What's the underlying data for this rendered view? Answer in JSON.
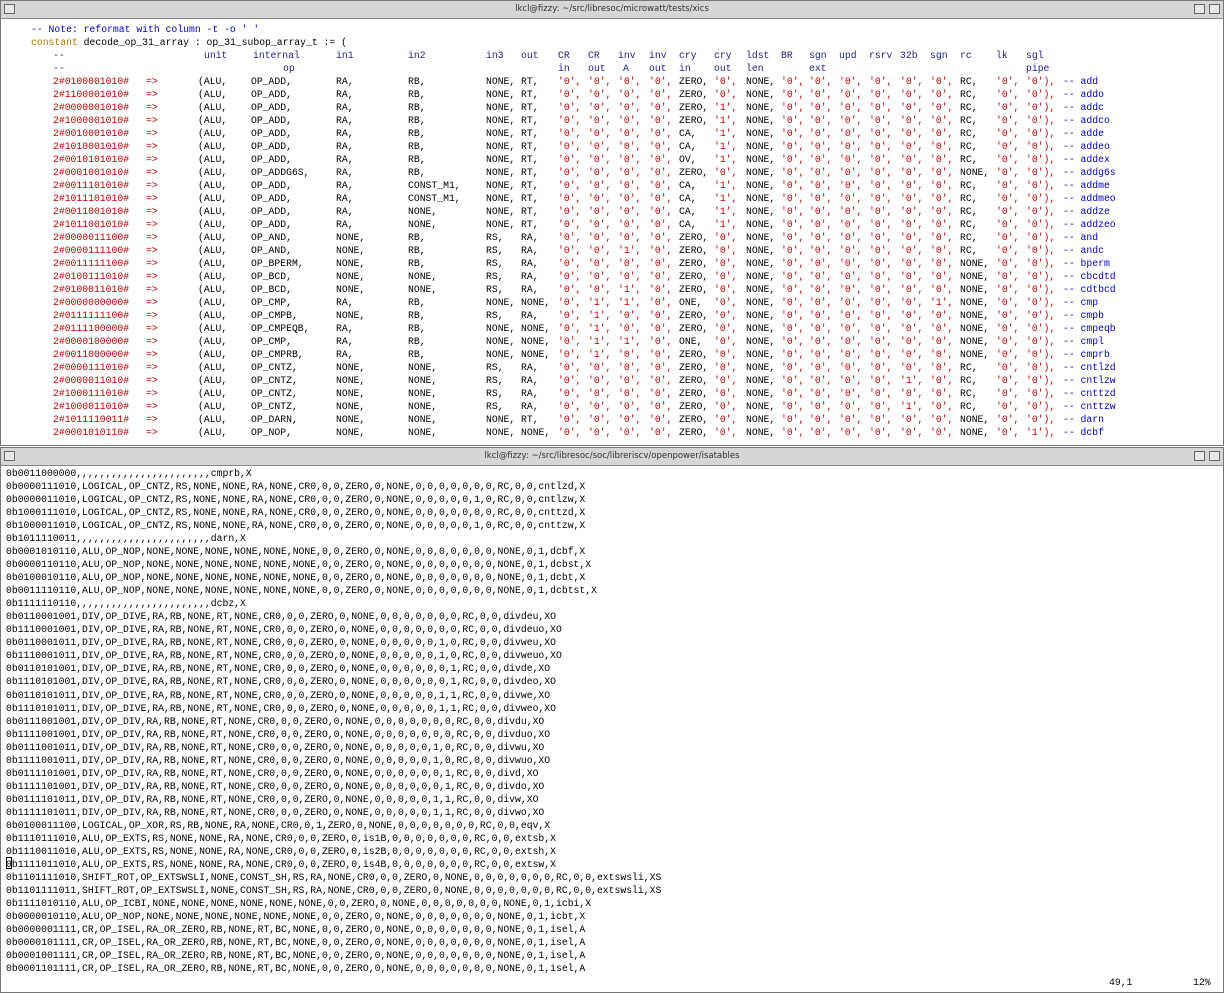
{
  "top_window": {
    "title": "lkcl@fizzy: ~/src/libresoc/microwatt/tests/xics",
    "note": "-- Note: reformat with column -t -o ' '",
    "declaration_keyword": "constant",
    "declaration": "decode_op_31_array : op_31_subop_array_t := (",
    "header_row_1": [
      "--",
      "unit",
      "internal",
      "in1",
      "in2",
      "in3",
      "out",
      "CR",
      "CR",
      "inv",
      "inv",
      "cry",
      "cry",
      "ldst",
      "BR",
      "sgn",
      "upd",
      "rsrv",
      "32b",
      "sgn",
      "rc",
      "lk",
      "sgl"
    ],
    "header_row_2": [
      "--",
      "op",
      "in",
      "out",
      "A",
      "out",
      "in",
      "out",
      "len",
      "ext",
      "pipe"
    ],
    "rows": [
      [
        "2#0100001010#",
        "=>",
        "(ALU,",
        "OP_ADD,",
        "RA,",
        "RB,",
        "NONE,",
        "RT,",
        "'0',",
        "'0',",
        "'0',",
        "'0',",
        "ZERO,",
        "'0',",
        "NONE,",
        "'0',",
        "'0',",
        "'0',",
        "'0',",
        "'0',",
        "'0',",
        "RC,",
        "'0',",
        "'0'),",
        "-- add"
      ],
      [
        "2#1100001010#",
        "=>",
        "(ALU,",
        "OP_ADD,",
        "RA,",
        "RB,",
        "NONE,",
        "RT,",
        "'0',",
        "'0',",
        "'0',",
        "'0',",
        "ZERO,",
        "'0',",
        "NONE,",
        "'0',",
        "'0',",
        "'0',",
        "'0',",
        "'0',",
        "'0',",
        "RC,",
        "'0',",
        "'0'),",
        "-- addo"
      ],
      [
        "2#0000001010#",
        "=>",
        "(ALU,",
        "OP_ADD,",
        "RA,",
        "RB,",
        "NONE,",
        "RT,",
        "'0',",
        "'0',",
        "'0',",
        "'0',",
        "ZERO,",
        "'1',",
        "NONE,",
        "'0',",
        "'0',",
        "'0',",
        "'0',",
        "'0',",
        "'0',",
        "RC,",
        "'0',",
        "'0'),",
        "-- addc"
      ],
      [
        "2#1000001010#",
        "=>",
        "(ALU,",
        "OP_ADD,",
        "RA,",
        "RB,",
        "NONE,",
        "RT,",
        "'0',",
        "'0',",
        "'0',",
        "'0',",
        "ZERO,",
        "'1',",
        "NONE,",
        "'0',",
        "'0',",
        "'0',",
        "'0',",
        "'0',",
        "'0',",
        "RC,",
        "'0',",
        "'0'),",
        "-- addco"
      ],
      [
        "2#0010001010#",
        "=>",
        "(ALU,",
        "OP_ADD,",
        "RA,",
        "RB,",
        "NONE,",
        "RT,",
        "'0',",
        "'0',",
        "'0',",
        "'0',",
        "CA,",
        "'1',",
        "NONE,",
        "'0',",
        "'0',",
        "'0',",
        "'0',",
        "'0',",
        "'0',",
        "RC,",
        "'0',",
        "'0'),",
        "-- adde"
      ],
      [
        "2#1010001010#",
        "=>",
        "(ALU,",
        "OP_ADD,",
        "RA,",
        "RB,",
        "NONE,",
        "RT,",
        "'0',",
        "'0',",
        "'0',",
        "'0',",
        "CA,",
        "'1',",
        "NONE,",
        "'0',",
        "'0',",
        "'0',",
        "'0',",
        "'0',",
        "'0',",
        "RC,",
        "'0',",
        "'0'),",
        "-- addeo"
      ],
      [
        "2#0010101010#",
        "=>",
        "(ALU,",
        "OP_ADD,",
        "RA,",
        "RB,",
        "NONE,",
        "RT,",
        "'0',",
        "'0',",
        "'0',",
        "'0',",
        "OV,",
        "'1',",
        "NONE,",
        "'0',",
        "'0',",
        "'0',",
        "'0',",
        "'0',",
        "'0',",
        "RC,",
        "'0',",
        "'0'),",
        "-- addex"
      ],
      [
        "2#0001001010#",
        "=>",
        "(ALU,",
        "OP_ADDG6S,",
        "RA,",
        "RB,",
        "NONE,",
        "RT,",
        "'0',",
        "'0',",
        "'0',",
        "'0',",
        "ZERO,",
        "'0',",
        "NONE,",
        "'0',",
        "'0',",
        "'0',",
        "'0',",
        "'0',",
        "'0',",
        "NONE,",
        "'0',",
        "'0'),",
        "-- addg6s"
      ],
      [
        "2#0011101010#",
        "=>",
        "(ALU,",
        "OP_ADD,",
        "RA,",
        "CONST_M1,",
        "NONE,",
        "RT,",
        "'0',",
        "'0',",
        "'0',",
        "'0',",
        "CA,",
        "'1',",
        "NONE,",
        "'0',",
        "'0',",
        "'0',",
        "'0',",
        "'0',",
        "'0',",
        "RC,",
        "'0',",
        "'0'),",
        "-- addme"
      ],
      [
        "2#1011101010#",
        "=>",
        "(ALU,",
        "OP_ADD,",
        "RA,",
        "CONST_M1,",
        "NONE,",
        "RT,",
        "'0',",
        "'0',",
        "'0',",
        "'0',",
        "CA,",
        "'1',",
        "NONE,",
        "'0',",
        "'0',",
        "'0',",
        "'0',",
        "'0',",
        "'0',",
        "RC,",
        "'0',",
        "'0'),",
        "-- addmeo"
      ],
      [
        "2#0011001010#",
        "=>",
        "(ALU,",
        "OP_ADD,",
        "RA,",
        "NONE,",
        "NONE,",
        "RT,",
        "'0',",
        "'0',",
        "'0',",
        "'0',",
        "CA,",
        "'1',",
        "NONE,",
        "'0',",
        "'0',",
        "'0',",
        "'0',",
        "'0',",
        "'0',",
        "RC,",
        "'0',",
        "'0'),",
        "-- addze"
      ],
      [
        "2#1011001010#",
        "=>",
        "(ALU,",
        "OP_ADD,",
        "RA,",
        "NONE,",
        "NONE,",
        "RT,",
        "'0',",
        "'0',",
        "'0',",
        "'0',",
        "CA,",
        "'1',",
        "NONE,",
        "'0',",
        "'0',",
        "'0',",
        "'0',",
        "'0',",
        "'0',",
        "RC,",
        "'0',",
        "'0'),",
        "-- addzeo"
      ],
      [
        "2#0000011100#",
        "=>",
        "(ALU,",
        "OP_AND,",
        "NONE,",
        "RB,",
        "RS,",
        "RA,",
        "'0',",
        "'0',",
        "'0',",
        "'0',",
        "ZERO,",
        "'0',",
        "NONE,",
        "'0',",
        "'0',",
        "'0',",
        "'0',",
        "'0',",
        "'0',",
        "RC,",
        "'0',",
        "'0'),",
        "-- and"
      ],
      [
        "2#0000111100#",
        "=>",
        "(ALU,",
        "OP_AND,",
        "NONE,",
        "RB,",
        "RS,",
        "RA,",
        "'0',",
        "'0',",
        "'1',",
        "'0',",
        "ZERO,",
        "'0',",
        "NONE,",
        "'0',",
        "'0',",
        "'0',",
        "'0',",
        "'0',",
        "'0',",
        "RC,",
        "'0',",
        "'0'),",
        "-- andc"
      ],
      [
        "2#0011111100#",
        "=>",
        "(ALU,",
        "OP_BPERM,",
        "NONE,",
        "RB,",
        "RS,",
        "RA,",
        "'0',",
        "'0',",
        "'0',",
        "'0',",
        "ZERO,",
        "'0',",
        "NONE,",
        "'0',",
        "'0',",
        "'0',",
        "'0',",
        "'0',",
        "'0',",
        "NONE,",
        "'0',",
        "'0'),",
        "-- bperm"
      ],
      [
        "2#0100111010#",
        "=>",
        "(ALU,",
        "OP_BCD,",
        "NONE,",
        "NONE,",
        "RS,",
        "RA,",
        "'0',",
        "'0',",
        "'0',",
        "'0',",
        "ZERO,",
        "'0',",
        "NONE,",
        "'0',",
        "'0',",
        "'0',",
        "'0',",
        "'0',",
        "'0',",
        "NONE,",
        "'0',",
        "'0'),",
        "-- cbcdtd"
      ],
      [
        "2#0100011010#",
        "=>",
        "(ALU,",
        "OP_BCD,",
        "NONE,",
        "NONE,",
        "RS,",
        "RA,",
        "'0',",
        "'0',",
        "'1',",
        "'0',",
        "ZERO,",
        "'0',",
        "NONE,",
        "'0',",
        "'0',",
        "'0',",
        "'0',",
        "'0',",
        "'0',",
        "NONE,",
        "'0',",
        "'0'),",
        "-- cdtbcd"
      ],
      [
        "2#0000000000#",
        "=>",
        "(ALU,",
        "OP_CMP,",
        "RA,",
        "RB,",
        "NONE,",
        "NONE,",
        "'0',",
        "'1',",
        "'1',",
        "'0',",
        "ONE,",
        "'0',",
        "NONE,",
        "'0',",
        "'0',",
        "'0',",
        "'0',",
        "'0',",
        "'1',",
        "NONE,",
        "'0',",
        "'0'),",
        "-- cmp"
      ],
      [
        "2#0111111100#",
        "=>",
        "(ALU,",
        "OP_CMPB,",
        "NONE,",
        "RB,",
        "RS,",
        "RA,",
        "'0',",
        "'1',",
        "'0',",
        "'0',",
        "ZERO,",
        "'0',",
        "NONE,",
        "'0',",
        "'0',",
        "'0',",
        "'0',",
        "'0',",
        "'0',",
        "NONE,",
        "'0',",
        "'0'),",
        "-- cmpb"
      ],
      [
        "2#0111100000#",
        "=>",
        "(ALU,",
        "OP_CMPEQB,",
        "RA,",
        "RB,",
        "NONE,",
        "NONE,",
        "'0',",
        "'1',",
        "'0',",
        "'0',",
        "ZERO,",
        "'0',",
        "NONE,",
        "'0',",
        "'0',",
        "'0',",
        "'0',",
        "'0',",
        "'0',",
        "NONE,",
        "'0',",
        "'0'),",
        "-- cmpeqb"
      ],
      [
        "2#0000100000#",
        "=>",
        "(ALU,",
        "OP_CMP,",
        "RA,",
        "RB,",
        "NONE,",
        "NONE,",
        "'0',",
        "'1',",
        "'1',",
        "'0',",
        "ONE,",
        "'0',",
        "NONE,",
        "'0',",
        "'0',",
        "'0',",
        "'0',",
        "'0',",
        "'0',",
        "NONE,",
        "'0',",
        "'0'),",
        "-- cmpl"
      ],
      [
        "2#0011000000#",
        "=>",
        "(ALU,",
        "OP_CMPRB,",
        "RA,",
        "RB,",
        "NONE,",
        "NONE,",
        "'0',",
        "'1',",
        "'0',",
        "'0',",
        "ZERO,",
        "'0',",
        "NONE,",
        "'0',",
        "'0',",
        "'0',",
        "'0',",
        "'0',",
        "'0',",
        "NONE,",
        "'0',",
        "'0'),",
        "-- cmprb"
      ],
      [
        "2#0000111010#",
        "=>",
        "(ALU,",
        "OP_CNTZ,",
        "NONE,",
        "NONE,",
        "RS,",
        "RA,",
        "'0',",
        "'0',",
        "'0',",
        "'0',",
        "ZERO,",
        "'0',",
        "NONE,",
        "'0',",
        "'0',",
        "'0',",
        "'0',",
        "'0',",
        "'0',",
        "RC,",
        "'0',",
        "'0'),",
        "-- cntlzd"
      ],
      [
        "2#0000011010#",
        "=>",
        "(ALU,",
        "OP_CNTZ,",
        "NONE,",
        "NONE,",
        "RS,",
        "RA,",
        "'0',",
        "'0',",
        "'0',",
        "'0',",
        "ZERO,",
        "'0',",
        "NONE,",
        "'0',",
        "'0',",
        "'0',",
        "'0',",
        "'1',",
        "'0',",
        "RC,",
        "'0',",
        "'0'),",
        "-- cntlzw"
      ],
      [
        "2#1000111010#",
        "=>",
        "(ALU,",
        "OP_CNTZ,",
        "NONE,",
        "NONE,",
        "RS,",
        "RA,",
        "'0',",
        "'0',",
        "'0',",
        "'0',",
        "ZERO,",
        "'0',",
        "NONE,",
        "'0',",
        "'0',",
        "'0',",
        "'0',",
        "'0',",
        "'0',",
        "RC,",
        "'0',",
        "'0'),",
        "-- cnttzd"
      ],
      [
        "2#1000011010#",
        "=>",
        "(ALU,",
        "OP_CNTZ,",
        "NONE,",
        "NONE,",
        "RS,",
        "RA,",
        "'0',",
        "'0',",
        "'0',",
        "'0',",
        "ZERO,",
        "'0',",
        "NONE,",
        "'0',",
        "'0',",
        "'0',",
        "'0',",
        "'1',",
        "'0',",
        "RC,",
        "'0',",
        "'0'),",
        "-- cnttzw"
      ],
      [
        "2#1011110011#",
        "=>",
        "(ALU,",
        "OP_DARN,",
        "NONE,",
        "NONE,",
        "NONE,",
        "RT,",
        "'0',",
        "'0',",
        "'0',",
        "'0',",
        "ZERO,",
        "'0',",
        "NONE,",
        "'0',",
        "'0',",
        "'0',",
        "'0',",
        "'0',",
        "'0',",
        "NONE,",
        "'0',",
        "'0'),",
        "-- darn"
      ],
      [
        "2#0001010110#",
        "=>",
        "(ALU,",
        "OP_NOP,",
        "NONE,",
        "NONE,",
        "NONE,",
        "NONE,",
        "'0',",
        "'0',",
        "'0',",
        "'0',",
        "ZERO,",
        "'0',",
        "NONE,",
        "'0',",
        "'0',",
        "'0',",
        "'0',",
        "'0',",
        "'0',",
        "NONE,",
        "'0',",
        "'1'),",
        "-- dcbf"
      ]
    ]
  },
  "bottom_window": {
    "title": "lkcl@fizzy: ~/src/libresoc/soc/libreriscv/openpower/isatables",
    "lines": [
      "0b0011000000,,,,,,,,,,,,,,,,,,,,,,,cmprb,X",
      "0b0000111010,LOGICAL,OP_CNTZ,RS,NONE,NONE,RA,NONE,CR0,0,0,ZERO,0,NONE,0,0,0,0,0,0,0,RC,0,0,cntlzd,X",
      "0b0000011010,LOGICAL,OP_CNTZ,RS,NONE,NONE,RA,NONE,CR0,0,0,ZERO,0,NONE,0,0,0,0,0,1,0,RC,0,0,cntlzw,X",
      "0b1000111010,LOGICAL,OP_CNTZ,RS,NONE,NONE,RA,NONE,CR0,0,0,ZERO,0,NONE,0,0,0,0,0,0,0,RC,0,0,cnttzd,X",
      "0b1000011010,LOGICAL,OP_CNTZ,RS,NONE,NONE,RA,NONE,CR0,0,0,ZERO,0,NONE,0,0,0,0,0,1,0,RC,0,0,cnttzw,X",
      "0b1011110011,,,,,,,,,,,,,,,,,,,,,,,darn,X",
      "0b0001010110,ALU,OP_NOP,NONE,NONE,NONE,NONE,NONE,NONE,0,0,ZERO,0,NONE,0,0,0,0,0,0,0,NONE,0,1,dcbf,X",
      "0b0000110110,ALU,OP_NOP,NONE,NONE,NONE,NONE,NONE,NONE,0,0,ZERO,0,NONE,0,0,0,0,0,0,0,NONE,0,1,dcbst,X",
      "0b0100010110,ALU,OP_NOP,NONE,NONE,NONE,NONE,NONE,NONE,0,0,ZERO,0,NONE,0,0,0,0,0,0,0,NONE,0,1,dcbt,X",
      "0b0011110110,ALU,OP_NOP,NONE,NONE,NONE,NONE,NONE,NONE,0,0,ZERO,0,NONE,0,0,0,0,0,0,0,NONE,0,1,dcbtst,X",
      "0b1111110110,,,,,,,,,,,,,,,,,,,,,,,dcbz,X",
      "0b0110001001,DIV,OP_DIVE,RA,RB,NONE,RT,NONE,CR0,0,0,ZERO,0,NONE,0,0,0,0,0,0,0,RC,0,0,divdeu,XO",
      "0b1110001001,DIV,OP_DIVE,RA,RB,NONE,RT,NONE,CR0,0,0,ZERO,0,NONE,0,0,0,0,0,0,0,RC,0,0,divdeuo,XO",
      "0b0110001011,DIV,OP_DIVE,RA,RB,NONE,RT,NONE,CR0,0,0,ZERO,0,NONE,0,0,0,0,0,1,0,RC,0,0,divweu,XO",
      "0b1110001011,DIV,OP_DIVE,RA,RB,NONE,RT,NONE,CR0,0,0,ZERO,0,NONE,0,0,0,0,0,1,0,RC,0,0,divweuo,XO",
      "0b0110101001,DIV,OP_DIVE,RA,RB,NONE,RT,NONE,CR0,0,0,ZERO,0,NONE,0,0,0,0,0,0,1,RC,0,0,divde,XO",
      "0b1110101001,DIV,OP_DIVE,RA,RB,NONE,RT,NONE,CR0,0,0,ZERO,0,NONE,0,0,0,0,0,0,1,RC,0,0,divdeo,XO",
      "0b0110101011,DIV,OP_DIVE,RA,RB,NONE,RT,NONE,CR0,0,0,ZERO,0,NONE,0,0,0,0,0,1,1,RC,0,0,divwe,XO",
      "0b1110101011,DIV,OP_DIVE,RA,RB,NONE,RT,NONE,CR0,0,0,ZERO,0,NONE,0,0,0,0,0,1,1,RC,0,0,divweo,XO",
      "0b0111001001,DIV,OP_DIV,RA,RB,NONE,RT,NONE,CR0,0,0,ZERO,0,NONE,0,0,0,0,0,0,0,RC,0,0,divdu,XO",
      "0b1111001001,DIV,OP_DIV,RA,RB,NONE,RT,NONE,CR0,0,0,ZERO,0,NONE,0,0,0,0,0,0,0,RC,0,0,divduo,XO",
      "0b0111001011,DIV,OP_DIV,RA,RB,NONE,RT,NONE,CR0,0,0,ZERO,0,NONE,0,0,0,0,0,1,0,RC,0,0,divwu,XO",
      "0b1111001011,DIV,OP_DIV,RA,RB,NONE,RT,NONE,CR0,0,0,ZERO,0,NONE,0,0,0,0,0,1,0,RC,0,0,divwuo,XO",
      "0b0111101001,DIV,OP_DIV,RA,RB,NONE,RT,NONE,CR0,0,0,ZERO,0,NONE,0,0,0,0,0,0,1,RC,0,0,divd,XO",
      "0b1111101001,DIV,OP_DIV,RA,RB,NONE,RT,NONE,CR0,0,0,ZERO,0,NONE,0,0,0,0,0,0,1,RC,0,0,divdo,XO",
      "0b0111101011,DIV,OP_DIV,RA,RB,NONE,RT,NONE,CR0,0,0,ZERO,0,NONE,0,0,0,0,0,1,1,RC,0,0,divw,XO",
      "0b1111101011,DIV,OP_DIV,RA,RB,NONE,RT,NONE,CR0,0,0,ZERO,0,NONE,0,0,0,0,0,1,1,RC,0,0,divwo,XO",
      "0b0100011100,LOGICAL,OP_XOR,RS,RB,NONE,RA,NONE,CR0,0,1,ZERO,0,NONE,0,0,0,0,0,0,0,RC,0,0,eqv,X",
      "0b1110111010,ALU,OP_EXTS,RS,NONE,NONE,RA,NONE,CR0,0,0,ZERO,0,is1B,0,0,0,0,0,0,0,RC,0,0,extsb,X",
      "0b1110011010,ALU,OP_EXTS,RS,NONE,NONE,RA,NONE,CR0,0,0,ZERO,0,is2B,0,0,0,0,0,0,0,RC,0,0,extsh,X",
      "0b1111011010,ALU,OP_EXTS,RS,NONE,NONE,RA,NONE,CR0,0,0,ZERO,0,is4B,0,0,0,0,0,0,0,RC,0,0,extsw,X",
      "0b1101111010,SHIFT_ROT,OP_EXTSWSLI,NONE,CONST_SH,RS,RA,NONE,CR0,0,0,ZERO,0,NONE,0,0,0,0,0,0,0,RC,0,0,extswsli,XS",
      "0b1101111011,SHIFT_ROT,OP_EXTSWSLI,NONE,CONST_SH,RS,RA,NONE,CR0,0,0,ZERO,0,NONE,0,0,0,0,0,0,0,RC,0,0,extswsli,XS",
      "0b1111010110,ALU,OP_ICBI,NONE,NONE,NONE,NONE,NONE,NONE,0,0,ZERO,0,NONE,0,0,0,0,0,0,0,NONE,0,1,icbi,X",
      "0b0000010110,ALU,OP_NOP,NONE,NONE,NONE,NONE,NONE,NONE,0,0,ZERO,0,NONE,0,0,0,0,0,0,0,NONE,0,1,icbt,X",
      "0b0000001111,CR,OP_ISEL,RA_OR_ZERO,RB,NONE,RT,BC,NONE,0,0,ZERO,0,NONE,0,0,0,0,0,0,0,NONE,0,1,isel,A",
      "0b0000101111,CR,OP_ISEL,RA_OR_ZERO,RB,NONE,RT,BC,NONE,0,0,ZERO,0,NONE,0,0,0,0,0,0,0,NONE,0,1,isel,A",
      "0b0001001111,CR,OP_ISEL,RA_OR_ZERO,RB,NONE,RT,BC,NONE,0,0,ZERO,0,NONE,0,0,0,0,0,0,0,NONE,0,1,isel,A",
      "0b0001101111,CR,OP_ISEL,RA_OR_ZERO,RB,NONE,RT,BC,NONE,0,0,ZERO,0,NONE,0,0,0,0,0,0,0,NONE,0,1,isel,A"
    ],
    "status": {
      "position": "49,1",
      "percent": "12%"
    }
  }
}
